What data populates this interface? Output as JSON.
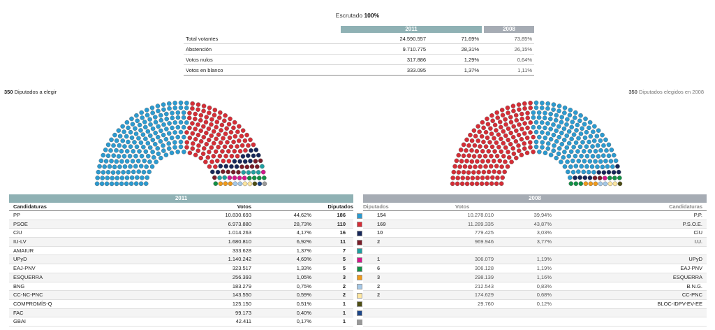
{
  "header": {
    "escrutado_label": "Escrutado",
    "escrutado_value": "100%",
    "year_current": "2011",
    "year_previous": "2008"
  },
  "summary": [
    {
      "label": "Total votantes",
      "v2011": "24.590.557",
      "p2011": "71,69%",
      "p2008": "73,85%"
    },
    {
      "label": "Abstención",
      "v2011": "9.710.775",
      "p2011": "28,31%",
      "p2008": "26,15%"
    },
    {
      "label": "Votos nulos",
      "v2011": "317.886",
      "p2011": "1,29%",
      "p2008": "0,64%"
    },
    {
      "label": "Votos en blanco",
      "v2011": "333.095",
      "p2011": "1,37%",
      "p2008": "1,11%"
    }
  ],
  "seats": {
    "left_count": "350",
    "left_text": "Diputados a elegir",
    "right_count": "350",
    "right_text": "Diputados elegidos en 2008"
  },
  "colors": {
    "header_2011": "#8fb1b4",
    "header_2008": "#a6acb4",
    "PP": "#2b9bd1",
    "PSOE": "#d62d36",
    "CiU": "#16275a",
    "IU": "#7a1c28",
    "AMAIUR": "#1f9fa1",
    "UPyD": "#d4178b",
    "EAJ-PNV": "#129146",
    "ESQUERRA": "#f09a1a",
    "BNG": "#a5c9e8",
    "CC": "#ffe7a0",
    "COMPROMIS": "#4e4e14",
    "FAC": "#1c4688",
    "GBAI": "#999999"
  },
  "table2011": {
    "title": "2011",
    "col_candidaturas": "Candidaturas",
    "col_votos": "Votos",
    "col_diputados": "Diputados",
    "rows": [
      {
        "name": "PP",
        "votes": "10.830.693",
        "pct": "44,62%",
        "seats": "186",
        "color": "#2b9bd1"
      },
      {
        "name": "PSOE",
        "votes": "6.973.880",
        "pct": "28,73%",
        "seats": "110",
        "color": "#d62d36"
      },
      {
        "name": "CiU",
        "votes": "1.014.263",
        "pct": "4,17%",
        "seats": "16",
        "color": "#16275a"
      },
      {
        "name": "IU-LV",
        "votes": "1.680.810",
        "pct": "6,92%",
        "seats": "11",
        "color": "#7a1c28"
      },
      {
        "name": "AMAIUR",
        "votes": "333.628",
        "pct": "1,37%",
        "seats": "7",
        "color": "#1f9fa1"
      },
      {
        "name": "UPyD",
        "votes": "1.140.242",
        "pct": "4,69%",
        "seats": "5",
        "color": "#d4178b"
      },
      {
        "name": "EAJ-PNV",
        "votes": "323.517",
        "pct": "1,33%",
        "seats": "5",
        "color": "#129146"
      },
      {
        "name": "ESQUERRA",
        "votes": "256.393",
        "pct": "1,05%",
        "seats": "3",
        "color": "#f09a1a"
      },
      {
        "name": "BNG",
        "votes": "183.279",
        "pct": "0,75%",
        "seats": "2",
        "color": "#a5c9e8"
      },
      {
        "name": "CC-NC-PNC",
        "votes": "143.550",
        "pct": "0,59%",
        "seats": "2",
        "color": "#ffe7a0"
      },
      {
        "name": "COMPROMÍS-Q",
        "votes": "125.150",
        "pct": "0,51%",
        "seats": "1",
        "color": "#4e4e14"
      },
      {
        "name": "FAC",
        "votes": "99.173",
        "pct": "0,40%",
        "seats": "1",
        "color": "#1c4688"
      },
      {
        "name": "GBAI",
        "votes": "42.411",
        "pct": "0,17%",
        "seats": "1",
        "color": "#999999"
      }
    ]
  },
  "table2008": {
    "title": "2008",
    "col_diputados": "Diputados",
    "col_votos": "Votos",
    "col_candidaturas": "Candidaturas",
    "rows": [
      {
        "seats": "154",
        "votes": "10.278.010",
        "pct": "39,94%",
        "name": "P.P."
      },
      {
        "seats": "169",
        "votes": "11.289.335",
        "pct": "43,87%",
        "name": "P.S.O.E."
      },
      {
        "seats": "10",
        "votes": "779.425",
        "pct": "3,03%",
        "name": "CiU"
      },
      {
        "seats": "2",
        "votes": "969.946",
        "pct": "3,77%",
        "name": "I.U."
      },
      {
        "seats": "",
        "votes": "",
        "pct": "",
        "name": ""
      },
      {
        "seats": "1",
        "votes": "306.079",
        "pct": "1,19%",
        "name": "UPyD"
      },
      {
        "seats": "6",
        "votes": "306.128",
        "pct": "1,19%",
        "name": "EAJ-PNV"
      },
      {
        "seats": "3",
        "votes": "298.139",
        "pct": "1,16%",
        "name": "ESQUERRA"
      },
      {
        "seats": "2",
        "votes": "212.543",
        "pct": "0,83%",
        "name": "B.N.G."
      },
      {
        "seats": "2",
        "votes": "174.629",
        "pct": "0,68%",
        "name": "CC-PNC"
      },
      {
        "seats": "",
        "votes": "29.760",
        "pct": "0,12%",
        "name": "BLOC-IDPV-EV-EE"
      },
      {
        "seats": "",
        "votes": "",
        "pct": "",
        "name": ""
      },
      {
        "seats": "",
        "votes": "",
        "pct": "",
        "name": ""
      }
    ]
  },
  "hemicycle2011": [
    {
      "party": "PP",
      "count": 186
    },
    {
      "party": "PSOE",
      "count": 110
    },
    {
      "party": "CiU",
      "count": 16
    },
    {
      "party": "IU",
      "count": 11
    },
    {
      "party": "AMAIUR",
      "count": 7
    },
    {
      "party": "UPyD",
      "count": 5
    },
    {
      "party": "EAJ-PNV",
      "count": 5
    },
    {
      "party": "ESQUERRA",
      "count": 3
    },
    {
      "party": "BNG",
      "count": 2
    },
    {
      "party": "CC",
      "count": 2
    },
    {
      "party": "COMPROMIS",
      "count": 1
    },
    {
      "party": "FAC",
      "count": 1
    },
    {
      "party": "GBAI",
      "count": 1
    }
  ],
  "hemicycle2008": [
    {
      "party": "PSOE",
      "count": 169
    },
    {
      "party": "PP",
      "count": 154
    },
    {
      "party": "CiU",
      "count": 10
    },
    {
      "party": "IU",
      "count": 2
    },
    {
      "party": "UPyD",
      "count": 1
    },
    {
      "party": "EAJ-PNV",
      "count": 6
    },
    {
      "party": "ESQUERRA",
      "count": 3
    },
    {
      "party": "BNG",
      "count": 2
    },
    {
      "party": "CC",
      "count": 2
    },
    {
      "party": "COMPROMIS",
      "count": 1
    }
  ]
}
